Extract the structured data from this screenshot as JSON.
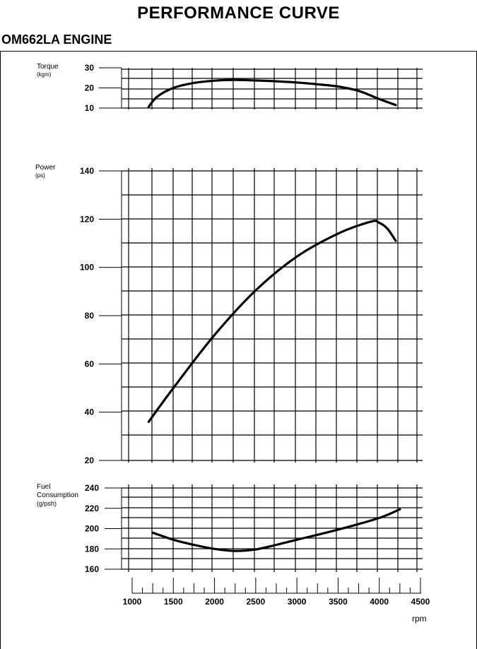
{
  "title": "PERFORMANCE CURVE",
  "subtitle": "OM662LA ENGINE",
  "chart_data": [
    {
      "type": "line",
      "panel": "torque",
      "ylabel": "Torque",
      "yunit": "(kgm)",
      "ylim": [
        10,
        30
      ],
      "yticks": [
        10,
        20,
        30
      ],
      "x": [
        1200,
        1300,
        1500,
        1750,
        2000,
        2250,
        2500,
        2750,
        3000,
        3250,
        3500,
        3750,
        4000,
        4200
      ],
      "values": [
        10.5,
        15.5,
        20,
        22.5,
        23.6,
        24,
        23.7,
        23.3,
        22.7,
        21.8,
        20.7,
        18.5,
        14.5,
        11.5
      ],
      "grid": true
    },
    {
      "type": "line",
      "panel": "power",
      "ylabel": "Power",
      "yunit": "(ps)",
      "ylim": [
        20,
        140
      ],
      "yticks": [
        20,
        40,
        60,
        80,
        100,
        120,
        140
      ],
      "x": [
        1200,
        1500,
        2000,
        2500,
        3000,
        3500,
        3900,
        4000,
        4100,
        4200
      ],
      "values": [
        36,
        50,
        72,
        90.5,
        104.5,
        114,
        119,
        118.5,
        116,
        111
      ],
      "grid": true
    },
    {
      "type": "line",
      "panel": "fuel_consumption",
      "ylabel": "Fuel Consumption",
      "yunit": "(g/psh)",
      "ylim": [
        160,
        240
      ],
      "yticks": [
        160,
        180,
        200,
        220,
        240
      ],
      "x": [
        1250,
        1500,
        1750,
        2000,
        2250,
        2500,
        2750,
        3000,
        3500,
        4000,
        4250
      ],
      "values": [
        196,
        189,
        184,
        180,
        178,
        179.5,
        184,
        189,
        199,
        210.5,
        219
      ],
      "grid": true
    }
  ],
  "xaxis": {
    "xlim": [
      1000,
      4500
    ],
    "xticks": [
      1000,
      1500,
      2000,
      2500,
      3000,
      3500,
      4000,
      4500
    ],
    "xlabel": "rpm"
  }
}
